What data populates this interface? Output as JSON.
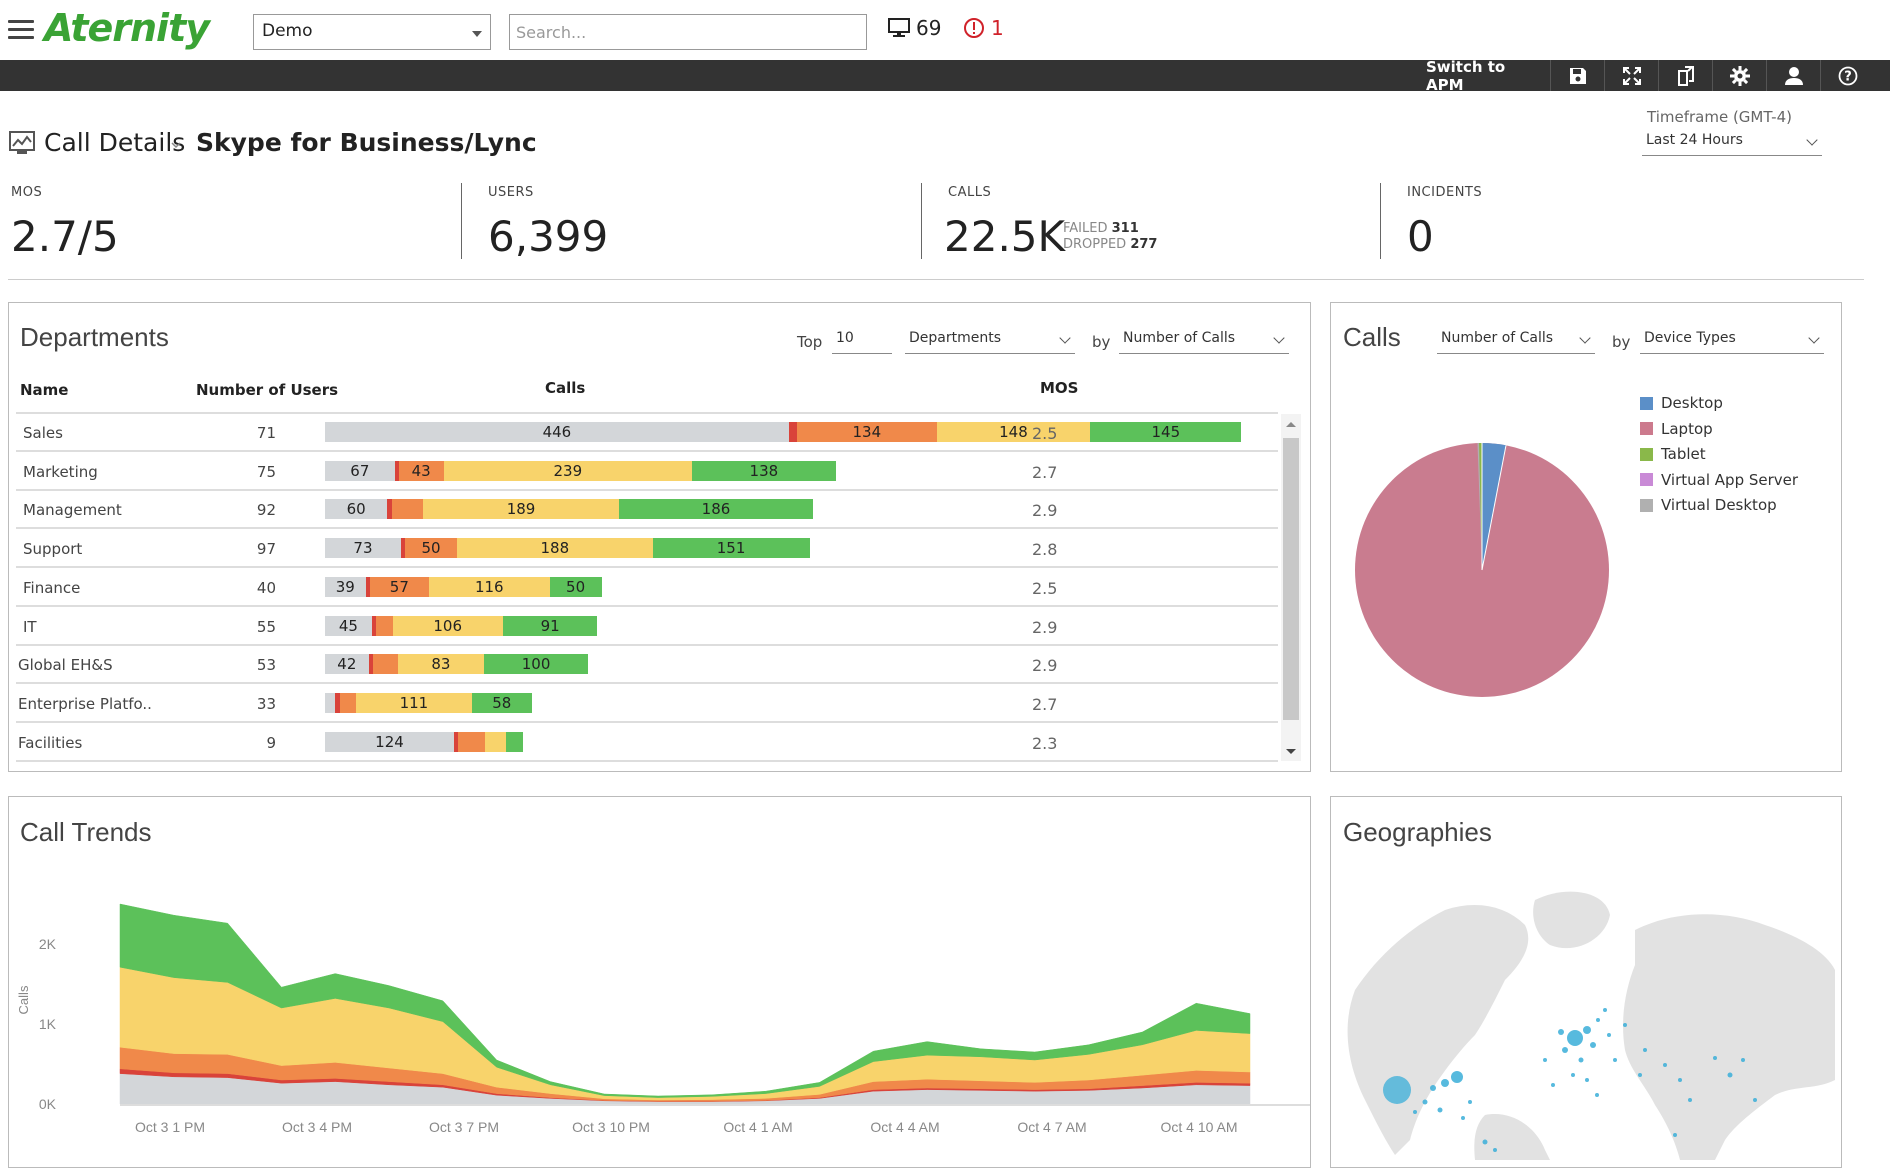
{
  "app": {
    "logo": "Aternity"
  },
  "topbar": {
    "env_select": "Demo",
    "search_placeholder": "Search...",
    "devices_count": "69",
    "alerts_count": "1"
  },
  "toolbar": {
    "switch_label": "Switch to APM"
  },
  "header": {
    "title": "Call Details",
    "subtitle": "Skype for Business/Lync",
    "timeframe_label": "Timeframe (GMT-4)",
    "timeframe_value": "Last 24 Hours"
  },
  "kpis": {
    "mos_label": "MOS",
    "mos_value": "2.7/5",
    "users_label": "USERS",
    "users_value": "6,399",
    "calls_label": "CALLS",
    "calls_value": "22.5K",
    "failed_label": "FAILED",
    "failed_value": "311",
    "dropped_label": "DROPPED",
    "dropped_value": "277",
    "incidents_label": "INCIDENTS",
    "incidents_value": "0"
  },
  "departments": {
    "title": "Departments",
    "top_label": "Top",
    "top_value": "10",
    "group_select": "Departments",
    "by_label": "by",
    "metric_select": "Number of Calls",
    "columns": {
      "name": "Name",
      "users": "Number of Users",
      "calls": "Calls",
      "mos": "MOS"
    },
    "colors": [
      "#d3d6d9",
      "#d9433a",
      "#f0894a",
      "#f8d36b",
      "#5cc15a"
    ],
    "rows": [
      {
        "name": "Sales",
        "users": "71",
        "mos": "2.5",
        "segs": [
          446,
          8,
          134,
          148,
          145
        ],
        "labels": [
          "446",
          "",
          "134",
          "148",
          "145"
        ]
      },
      {
        "name": "Marketing",
        "users": "75",
        "mos": "2.7",
        "segs": [
          67,
          4,
          43,
          239,
          138
        ],
        "labels": [
          "67",
          "",
          "43",
          "239",
          "138"
        ]
      },
      {
        "name": "Management",
        "users": "92",
        "mos": "2.9",
        "segs": [
          60,
          4,
          30,
          189,
          186
        ],
        "labels": [
          "60",
          "",
          "",
          "189",
          "186"
        ]
      },
      {
        "name": "Support",
        "users": "97",
        "mos": "2.8",
        "segs": [
          73,
          4,
          50,
          188,
          151
        ],
        "labels": [
          "73",
          "",
          "50",
          "188",
          "151"
        ]
      },
      {
        "name": "Finance",
        "users": "40",
        "mos": "2.5",
        "segs": [
          39,
          4,
          57,
          116,
          50
        ],
        "labels": [
          "39",
          "",
          "57",
          "116",
          "50"
        ]
      },
      {
        "name": "IT",
        "users": "55",
        "mos": "2.9",
        "segs": [
          45,
          4,
          16,
          106,
          91
        ],
        "labels": [
          "45",
          "",
          "",
          "106",
          "91"
        ]
      },
      {
        "name": "Global EH&S",
        "users": "53",
        "mos": "2.9",
        "segs": [
          42,
          4,
          24,
          83,
          100
        ],
        "labels": [
          "42",
          "",
          "",
          "83",
          "100"
        ]
      },
      {
        "name": "Enterprise Platfo..",
        "users": "33",
        "mos": "2.7",
        "segs": [
          10,
          4,
          16,
          111,
          58
        ],
        "labels": [
          "",
          "",
          "",
          "111",
          "58"
        ]
      },
      {
        "name": "Facilities",
        "users": "9",
        "mos": "2.3",
        "segs": [
          124,
          4,
          26,
          20,
          16
        ],
        "labels": [
          "124",
          "",
          "",
          "",
          ""
        ]
      }
    ]
  },
  "calls_panel": {
    "title": "Calls",
    "metric_select": "Number of Calls",
    "by_label": "by",
    "group_select": "Device Types",
    "legend": [
      {
        "name": "Desktop",
        "color": "#5b8fc8"
      },
      {
        "name": "Laptop",
        "color": "#cc7a8d"
      },
      {
        "name": "Tablet",
        "color": "#8ab84a"
      },
      {
        "name": "Virtual App Server",
        "color": "#c98ad6"
      },
      {
        "name": "Virtual Desktop",
        "color": "#b0b0b0"
      }
    ]
  },
  "chart_data": {
    "type": "area",
    "title": "Call Trends",
    "ylabel": "Calls",
    "ylim": [
      0,
      2800
    ],
    "y_ticks": [
      "0K",
      "1K",
      "2K"
    ],
    "x_ticks": [
      "Oct 3 1 PM",
      "Oct 3 4 PM",
      "Oct 3 7 PM",
      "Oct 3 10 PM",
      "Oct 4 1 AM",
      "Oct 4 4 AM",
      "Oct 4 7 AM",
      "Oct 4 10 AM"
    ],
    "series_colors": [
      "#d3d6d9",
      "#d9433a",
      "#f0894a",
      "#f8d36b",
      "#5cc15a"
    ],
    "series": [
      {
        "values": [
          380,
          340,
          330,
          260,
          280,
          240,
          210,
          110,
          70,
          40,
          30,
          30,
          40,
          70,
          160,
          180,
          170,
          160,
          170,
          200,
          240,
          230
        ]
      },
      {
        "values": [
          60,
          50,
          50,
          40,
          40,
          40,
          30,
          20,
          10,
          5,
          5,
          5,
          5,
          10,
          20,
          20,
          20,
          20,
          20,
          30,
          30,
          30
        ]
      },
      {
        "values": [
          270,
          240,
          240,
          180,
          200,
          170,
          140,
          80,
          50,
          20,
          15,
          20,
          25,
          40,
          100,
          110,
          100,
          90,
          110,
          130,
          150,
          140
        ]
      },
      {
        "values": [
          1000,
          950,
          900,
          720,
          800,
          750,
          650,
          250,
          110,
          40,
          30,
          40,
          60,
          100,
          250,
          300,
          300,
          280,
          320,
          380,
          500,
          480
        ]
      },
      {
        "values": [
          790,
          780,
          740,
          260,
          310,
          280,
          260,
          90,
          40,
          20,
          20,
          20,
          30,
          50,
          130,
          170,
          100,
          100,
          120,
          160,
          340,
          250
        ]
      }
    ]
  },
  "geo_panel": {
    "title": "Geographies"
  }
}
